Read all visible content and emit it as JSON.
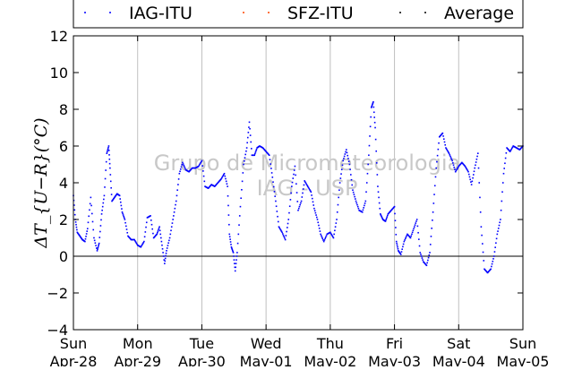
{
  "chart_data": {
    "type": "scatter",
    "ylabel": "ΔT_{U−R}(°C)",
    "ylim": [
      -4,
      12
    ],
    "yticks": [
      -4,
      -2,
      0,
      2,
      4,
      6,
      8,
      10,
      12
    ],
    "xlim": [
      0,
      7
    ],
    "xticks": [
      {
        "day": "Sun",
        "date": "Apr-28"
      },
      {
        "day": "Mon",
        "date": "Apr-29"
      },
      {
        "day": "Tue",
        "date": "Apr-30"
      },
      {
        "day": "Wed",
        "date": "May-01"
      },
      {
        "day": "Thu",
        "date": "May-02"
      },
      {
        "day": "Fri",
        "date": "May-03"
      },
      {
        "day": "Sat",
        "date": "May-04"
      },
      {
        "day": "Sun",
        "date": "May-05"
      }
    ],
    "grid": "vertical",
    "zero_line": true,
    "legend_position": "top",
    "watermark": [
      "Grupo de Micrometeorologia",
      "IAG - USP"
    ],
    "colors": {
      "IAG-ITU": "#0000ff",
      "SFZ-ITU": "#ff4500",
      "Average": "#000000"
    },
    "series": [
      {
        "name": "IAG-ITU",
        "marker": ".",
        "points": [
          [
            0.0,
            3.3
          ],
          [
            0.03,
            2.0
          ],
          [
            0.06,
            1.3
          ],
          [
            0.1,
            1.1
          ],
          [
            0.14,
            0.9
          ],
          [
            0.18,
            0.8
          ],
          [
            0.22,
            1.5
          ],
          [
            0.27,
            3.2
          ],
          [
            0.32,
            1.0
          ],
          [
            0.37,
            0.3
          ],
          [
            0.4,
            0.7
          ],
          [
            0.44,
            2.3
          ],
          [
            0.48,
            3.3
          ],
          [
            0.52,
            5.6
          ],
          [
            0.55,
            6.0
          ],
          [
            0.57,
            4.8
          ],
          [
            0.6,
            3.0
          ],
          [
            0.64,
            3.2
          ],
          [
            0.68,
            3.4
          ],
          [
            0.72,
            3.3
          ],
          [
            0.76,
            2.4
          ],
          [
            0.8,
            2.0
          ],
          [
            0.85,
            1.1
          ],
          [
            0.9,
            0.9
          ],
          [
            0.95,
            0.9
          ],
          [
            1.0,
            0.6
          ],
          [
            1.05,
            0.5
          ],
          [
            1.1,
            0.8
          ],
          [
            1.15,
            2.1
          ],
          [
            1.2,
            2.2
          ],
          [
            1.25,
            1.0
          ],
          [
            1.3,
            1.2
          ],
          [
            1.34,
            1.6
          ],
          [
            1.38,
            0.6
          ],
          [
            1.42,
            -0.4
          ],
          [
            1.45,
            0.3
          ],
          [
            1.5,
            1.0
          ],
          [
            1.55,
            2.0
          ],
          [
            1.6,
            3.0
          ],
          [
            1.65,
            4.5
          ],
          [
            1.7,
            5.1
          ],
          [
            1.75,
            4.7
          ],
          [
            1.8,
            4.6
          ],
          [
            1.85,
            4.8
          ],
          [
            1.9,
            4.8
          ],
          [
            1.95,
            4.9
          ],
          [
            2.0,
            5.2
          ],
          [
            2.05,
            3.8
          ],
          [
            2.1,
            3.7
          ],
          [
            2.15,
            3.9
          ],
          [
            2.2,
            3.8
          ],
          [
            2.25,
            4.0
          ],
          [
            2.3,
            4.2
          ],
          [
            2.35,
            4.5
          ],
          [
            2.4,
            3.8
          ],
          [
            2.43,
            1.2
          ],
          [
            2.46,
            0.5
          ],
          [
            2.49,
            0.2
          ],
          [
            2.52,
            -0.8
          ],
          [
            2.55,
            0.2
          ],
          [
            2.6,
            2.7
          ],
          [
            2.65,
            5.0
          ],
          [
            2.7,
            5.9
          ],
          [
            2.74,
            7.3
          ],
          [
            2.78,
            5.5
          ],
          [
            2.82,
            5.5
          ],
          [
            2.86,
            5.9
          ],
          [
            2.9,
            6.0
          ],
          [
            2.95,
            5.9
          ],
          [
            3.0,
            5.7
          ],
          [
            3.05,
            5.5
          ],
          [
            3.1,
            4.3
          ],
          [
            3.15,
            3.0
          ],
          [
            3.2,
            1.6
          ],
          [
            3.25,
            1.3
          ],
          [
            3.3,
            0.9
          ],
          [
            3.35,
            2.0
          ],
          [
            3.4,
            3.8
          ],
          [
            3.45,
            4.9
          ],
          [
            3.5,
            2.5
          ],
          [
            3.55,
            3.0
          ],
          [
            3.6,
            4.1
          ],
          [
            3.65,
            3.8
          ],
          [
            3.7,
            3.5
          ],
          [
            3.75,
            2.6
          ],
          [
            3.8,
            2.0
          ],
          [
            3.85,
            1.2
          ],
          [
            3.9,
            0.8
          ],
          [
            3.95,
            1.2
          ],
          [
            4.0,
            1.3
          ],
          [
            4.05,
            1.0
          ],
          [
            4.1,
            2.0
          ],
          [
            4.15,
            4.0
          ],
          [
            4.2,
            5.2
          ],
          [
            4.25,
            5.8
          ],
          [
            4.3,
            5.0
          ],
          [
            4.35,
            3.6
          ],
          [
            4.4,
            3.0
          ],
          [
            4.45,
            2.5
          ],
          [
            4.5,
            2.4
          ],
          [
            4.55,
            3.0
          ],
          [
            4.6,
            5.5
          ],
          [
            4.64,
            8.1
          ],
          [
            4.67,
            8.4
          ],
          [
            4.7,
            7.0
          ],
          [
            4.74,
            3.8
          ],
          [
            4.78,
            2.3
          ],
          [
            4.82,
            2.0
          ],
          [
            4.86,
            1.9
          ],
          [
            4.9,
            2.3
          ],
          [
            4.95,
            2.5
          ],
          [
            5.0,
            2.7
          ],
          [
            5.03,
            0.8
          ],
          [
            5.06,
            0.3
          ],
          [
            5.1,
            0.1
          ],
          [
            5.15,
            0.8
          ],
          [
            5.2,
            1.2
          ],
          [
            5.25,
            1.0
          ],
          [
            5.3,
            1.5
          ],
          [
            5.35,
            2.0
          ],
          [
            5.4,
            0.2
          ],
          [
            5.45,
            -0.3
          ],
          [
            5.5,
            -0.5
          ],
          [
            5.55,
            0.2
          ],
          [
            5.6,
            2.4
          ],
          [
            5.65,
            4.8
          ],
          [
            5.7,
            6.5
          ],
          [
            5.75,
            6.7
          ],
          [
            5.8,
            5.9
          ],
          [
            5.85,
            5.6
          ],
          [
            5.9,
            5.2
          ],
          [
            5.95,
            4.6
          ],
          [
            6.0,
            4.9
          ],
          [
            6.05,
            5.1
          ],
          [
            6.1,
            4.9
          ],
          [
            6.15,
            4.6
          ],
          [
            6.2,
            3.9
          ],
          [
            6.25,
            4.8
          ],
          [
            6.3,
            5.6
          ],
          [
            6.35,
            1.6
          ],
          [
            6.4,
            -0.7
          ],
          [
            6.45,
            -0.9
          ],
          [
            6.5,
            -0.7
          ],
          [
            6.55,
            0.0
          ],
          [
            6.6,
            1.2
          ],
          [
            6.65,
            2.0
          ],
          [
            6.7,
            4.5
          ],
          [
            6.75,
            5.9
          ],
          [
            6.8,
            5.7
          ],
          [
            6.85,
            6.0
          ],
          [
            6.9,
            5.9
          ],
          [
            6.95,
            5.8
          ],
          [
            7.0,
            6.0
          ]
        ]
      },
      {
        "name": "SFZ-ITU",
        "marker": ".",
        "points": []
      },
      {
        "name": "Average",
        "marker": ".",
        "points": []
      }
    ]
  }
}
